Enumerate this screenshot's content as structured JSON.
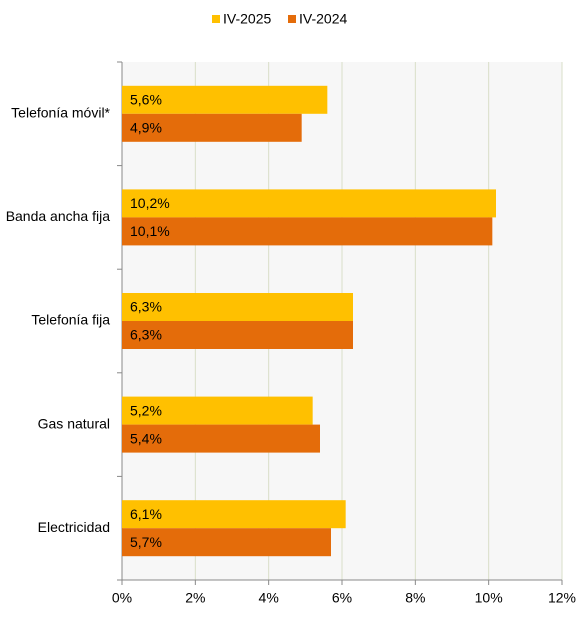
{
  "chart_data": {
    "type": "bar",
    "orientation": "horizontal",
    "categories": [
      "Telefonía móvil*",
      "Banda ancha fija",
      "Telefonía fija",
      "Gas natural",
      "Electricidad"
    ],
    "series": [
      {
        "name": "IV-2025",
        "color": "#ffc000",
        "values": [
          5.6,
          10.2,
          6.3,
          5.2,
          6.1
        ],
        "value_labels": [
          "5,6%",
          "10,2%",
          "6,3%",
          "5,2%",
          "6,1%"
        ]
      },
      {
        "name": "IV-2024",
        "color": "#e46c0a",
        "values": [
          4.9,
          10.1,
          6.3,
          5.4,
          5.7
        ],
        "value_labels": [
          "4,9%",
          "10,1%",
          "6,3%",
          "5,4%",
          "5,7%"
        ]
      }
    ],
    "xlim": [
      0,
      12
    ],
    "xticks": [
      {
        "value": 0,
        "label": "0%"
      },
      {
        "value": 2,
        "label": "2%"
      },
      {
        "value": 4,
        "label": "4%"
      },
      {
        "value": 6,
        "label": "6%"
      },
      {
        "value": 8,
        "label": "8%"
      },
      {
        "value": 10,
        "label": "10%"
      },
      {
        "value": 12,
        "label": "12%"
      }
    ],
    "grid": true,
    "legend": "top"
  }
}
